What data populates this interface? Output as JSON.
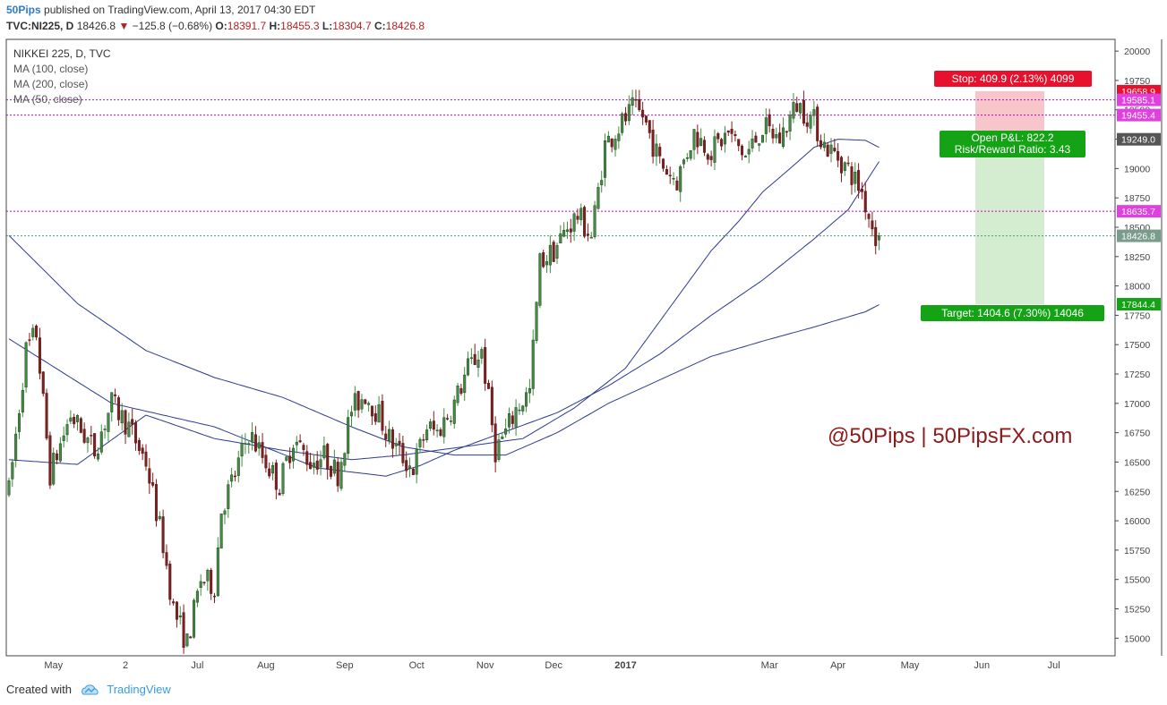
{
  "header": {
    "publisher": "50Pips",
    "published_text": "published on TradingView.com, April 13, 2017 04:30 EDT"
  },
  "quote": {
    "symbol": "TVC:NI225, D",
    "last": "18426.8",
    "change_arrow": "▼",
    "change": "−125.8 (−0.68%)",
    "o_label": "O:",
    "o": "18391.7",
    "h_label": "H:",
    "h": "18455.3",
    "l_label": "L:",
    "l": "18304.7",
    "c_label": "C:",
    "c": "18426.8"
  },
  "legend": {
    "title": "NIKKEI 225, D, TVC",
    "ma100": "MA (100, close)",
    "ma200": "MA (200, close)",
    "ma50": "MA (50, close)"
  },
  "annotations": {
    "stop": "Stop: 409.9 (2.13%) 4099",
    "open_pl": "Open P&L: 822.2",
    "rr": "Risk/Reward Ratio: 3.43",
    "target": "Target: 1404.6 (7.30%) 14046",
    "watermark": "@50Pips | 50PipsFX.com"
  },
  "footer": {
    "created_with": "Created with",
    "brand": "TradingView"
  },
  "colors": {
    "up": "#3d8f3d",
    "down": "#8b1a1a",
    "ma": "#2b3a8f",
    "level": "#cc00cc",
    "stop_zone": "#f7c6cb",
    "target_zone": "#d4ecd0",
    "stop_box": "#e8112d",
    "target_box": "#14a314"
  },
  "chart_data": {
    "type": "candlestick",
    "title": "NIKKEI 225, D, TVC",
    "x_ticks": [
      "May",
      "2",
      "Jul",
      "Aug",
      "Sep",
      "Oct",
      "Nov",
      "Dec",
      "2017",
      "Mar",
      "Apr",
      "May",
      "Jun",
      "Jul"
    ],
    "y_ticks": [
      20000,
      19750,
      19500,
      19250,
      19000,
      18750,
      18500,
      18250,
      18000,
      17750,
      17500,
      17250,
      17000,
      16750,
      16500,
      16250,
      16000,
      15750,
      15500,
      15250,
      15000
    ],
    "ylim": [
      14850,
      20100
    ],
    "price_tags": [
      {
        "label": "19658.9",
        "value": 19658.9,
        "color": "#e8112d"
      },
      {
        "label": "19585.1",
        "value": 19585.1,
        "color": "#e040e0"
      },
      {
        "label": "19455.4",
        "value": 19455.4,
        "color": "#e040e0"
      },
      {
        "label": "19249.0",
        "value": 19249.0,
        "color": "#555555"
      },
      {
        "label": "18635.7",
        "value": 18635.7,
        "color": "#e040e0"
      },
      {
        "label": "18426.8",
        "value": 18426.8,
        "color": "#7a9c8c"
      },
      {
        "label": "17844.4",
        "value": 17844.4,
        "color": "#14a314"
      }
    ],
    "levels": [
      19585.1,
      19455.4,
      18635.7
    ],
    "last_price": 18426.8,
    "stop": 19658.9,
    "entry": 19249.0,
    "target": 17844.4,
    "series": [
      {
        "name": "MA (50, close)",
        "anchors": [
          [
            0,
            16520
          ],
          [
            20,
            16480
          ],
          [
            40,
            16900
          ],
          [
            60,
            16700
          ],
          [
            80,
            16600
          ],
          [
            100,
            16520
          ],
          [
            115,
            16560
          ],
          [
            130,
            16620
          ],
          [
            150,
            16700
          ],
          [
            165,
            16960
          ],
          [
            180,
            17300
          ],
          [
            195,
            17900
          ],
          [
            205,
            18300
          ],
          [
            213,
            18550
          ],
          [
            220,
            18800
          ],
          [
            228,
            19000
          ],
          [
            235,
            19180
          ],
          [
            242,
            19250
          ],
          [
            250,
            19240
          ],
          [
            254,
            19180
          ]
        ]
      },
      {
        "name": "MA (100, close)",
        "anchors": [
          [
            0,
            17550
          ],
          [
            30,
            17000
          ],
          [
            60,
            16800
          ],
          [
            90,
            16450
          ],
          [
            110,
            16380
          ],
          [
            120,
            16470
          ],
          [
            130,
            16600
          ],
          [
            145,
            16760
          ],
          [
            160,
            16920
          ],
          [
            175,
            17150
          ],
          [
            190,
            17420
          ],
          [
            205,
            17750
          ],
          [
            220,
            18050
          ],
          [
            235,
            18400
          ],
          [
            245,
            18650
          ],
          [
            254,
            19060
          ]
        ]
      },
      {
        "name": "MA (200, close)",
        "anchors": [
          [
            0,
            18430
          ],
          [
            20,
            17850
          ],
          [
            40,
            17450
          ],
          [
            60,
            17220
          ],
          [
            80,
            17050
          ],
          [
            100,
            16800
          ],
          [
            115,
            16630
          ],
          [
            130,
            16560
          ],
          [
            145,
            16560
          ],
          [
            160,
            16750
          ],
          [
            175,
            17000
          ],
          [
            190,
            17200
          ],
          [
            205,
            17400
          ],
          [
            220,
            17530
          ],
          [
            235,
            17650
          ],
          [
            250,
            17780
          ],
          [
            254,
            17840
          ]
        ]
      }
    ],
    "candle_anchors": [
      [
        0,
        16250
      ],
      [
        5,
        17450
      ],
      [
        8,
        17600
      ],
      [
        12,
        16400
      ],
      [
        18,
        16900
      ],
      [
        25,
        16600
      ],
      [
        30,
        17000
      ],
      [
        35,
        16800
      ],
      [
        40,
        16500
      ],
      [
        45,
        15800
      ],
      [
        48,
        15250
      ],
      [
        52,
        14950
      ],
      [
        56,
        15500
      ],
      [
        60,
        15450
      ],
      [
        62,
        16100
      ],
      [
        66,
        16400
      ],
      [
        70,
        16750
      ],
      [
        75,
        16500
      ],
      [
        79,
        16300
      ],
      [
        83,
        16700
      ],
      [
        88,
        16500
      ],
      [
        92,
        16550
      ],
      [
        96,
        16400
      ],
      [
        100,
        16950
      ],
      [
        104,
        17080
      ],
      [
        108,
        16900
      ],
      [
        111,
        16700
      ],
      [
        116,
        16500
      ],
      [
        118,
        16450
      ],
      [
        122,
        16800
      ],
      [
        125,
        16750
      ],
      [
        130,
        17000
      ],
      [
        134,
        17300
      ],
      [
        138,
        17450
      ],
      [
        142,
        16600
      ],
      [
        145,
        16750
      ],
      [
        148,
        16950
      ],
      [
        152,
        17100
      ],
      [
        155,
        18200
      ],
      [
        159,
        18300
      ],
      [
        163,
        18500
      ],
      [
        166,
        18600
      ],
      [
        170,
        18420
      ],
      [
        174,
        19200
      ],
      [
        178,
        19350
      ],
      [
        182,
        19500
      ],
      [
        185,
        19450
      ],
      [
        190,
        19050
      ],
      [
        195,
        18900
      ],
      [
        200,
        19300
      ],
      [
        205,
        19150
      ],
      [
        210,
        19300
      ],
      [
        215,
        19100
      ],
      [
        220,
        19350
      ],
      [
        225,
        19250
      ],
      [
        230,
        19550
      ],
      [
        235,
        19400
      ],
      [
        238,
        19200
      ],
      [
        242,
        19100
      ],
      [
        246,
        18950
      ],
      [
        249,
        18800
      ],
      [
        251,
        18600
      ],
      [
        253,
        18430
      ]
    ],
    "n_candles": 255,
    "last_candle": {
      "open": 18391.7,
      "high": 18455.3,
      "low": 18304.7,
      "close": 18426.8
    }
  }
}
